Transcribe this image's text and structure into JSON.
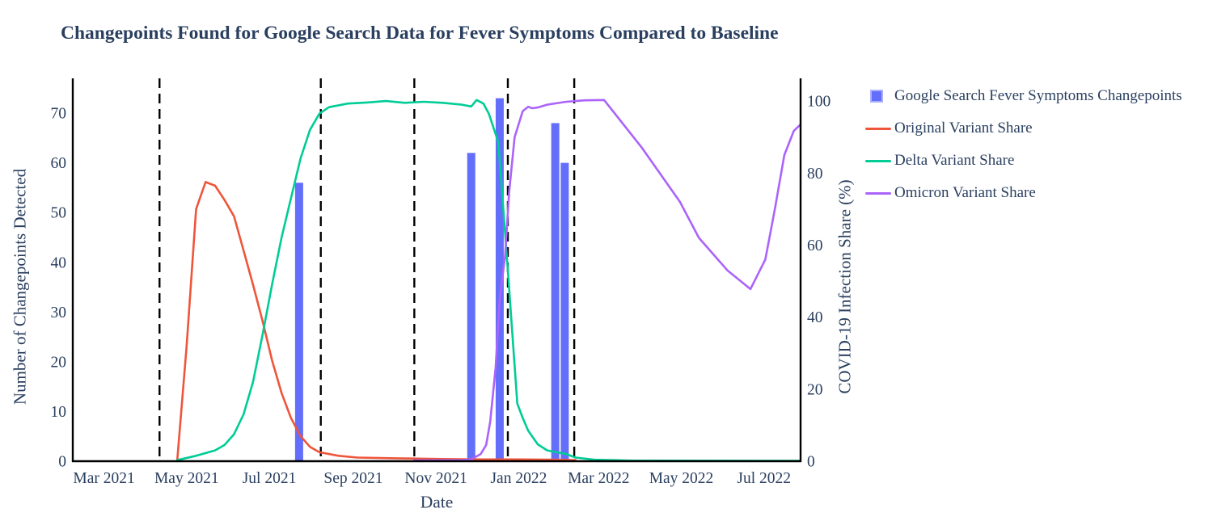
{
  "chart_data": {
    "type": "bar+line",
    "title": "Changepoints Found for Google Search Data for Fever Symptoms Compared to Baseline",
    "xlabel": "Date",
    "ylabel_left": "Number of Changepoints Detected",
    "ylabel_right": "COVID-19 Infection Share (%)",
    "x_range": [
      "2021-02-06",
      "2022-07-28"
    ],
    "ylim_left": [
      0,
      77
    ],
    "ylim_right": [
      0,
      106.3
    ],
    "yticks_left": [
      0,
      10,
      20,
      30,
      40,
      50,
      60,
      70
    ],
    "yticks_right": [
      0,
      20,
      40,
      60,
      80,
      100
    ],
    "xticks": [
      {
        "date": "2021-03-01",
        "label": "Mar 2021"
      },
      {
        "date": "2021-05-01",
        "label": "May 2021"
      },
      {
        "date": "2021-07-01",
        "label": "Jul 2021"
      },
      {
        "date": "2021-09-01",
        "label": "Sep 2021"
      },
      {
        "date": "2021-11-01",
        "label": "Nov 2021"
      },
      {
        "date": "2022-01-01",
        "label": "Jan 2022"
      },
      {
        "date": "2022-03-01",
        "label": "Mar 2022"
      },
      {
        "date": "2022-05-01",
        "label": "May 2022"
      },
      {
        "date": "2022-07-01",
        "label": "Jul 2022"
      }
    ],
    "dashed_vlines": [
      "2021-04-11",
      "2021-08-08",
      "2021-10-16",
      "2021-12-24",
      "2022-02-11"
    ],
    "bars": {
      "name": "Google Search Fever Symptoms Changepoints",
      "color": "#636EFA",
      "axis": "left",
      "points": [
        [
          "2021-07-23",
          56
        ],
        [
          "2021-11-27",
          62
        ],
        [
          "2021-12-18",
          73
        ],
        [
          "2022-01-28",
          68
        ],
        [
          "2022-02-04",
          60
        ]
      ]
    },
    "series": [
      {
        "name": "Original Variant Share",
        "color": "#EF553B",
        "axis": "right",
        "points": [
          [
            "2021-04-24",
            0
          ],
          [
            "2021-05-01",
            32
          ],
          [
            "2021-05-08",
            70
          ],
          [
            "2021-05-15",
            77.5
          ],
          [
            "2021-05-22",
            76.5
          ],
          [
            "2021-05-29",
            72.5
          ],
          [
            "2021-06-05",
            68
          ],
          [
            "2021-06-12",
            58.5
          ],
          [
            "2021-06-19",
            49
          ],
          [
            "2021-06-26",
            39
          ],
          [
            "2021-07-03",
            28
          ],
          [
            "2021-07-10",
            19
          ],
          [
            "2021-07-17",
            12
          ],
          [
            "2021-07-24",
            7
          ],
          [
            "2021-07-31",
            4
          ],
          [
            "2021-08-07",
            2.5
          ],
          [
            "2021-08-21",
            1.5
          ],
          [
            "2021-09-04",
            1
          ],
          [
            "2021-10-02",
            0.8
          ],
          [
            "2021-11-06",
            0.6
          ],
          [
            "2021-12-04",
            0.5
          ],
          [
            "2022-01-01",
            0.5
          ],
          [
            "2022-01-29",
            0.4
          ],
          [
            "2022-02-12",
            0.3
          ]
        ]
      },
      {
        "name": "Delta Variant Share",
        "color": "#00CC96",
        "axis": "right",
        "points": [
          [
            "2021-04-24",
            0.3
          ],
          [
            "2021-05-08",
            1.5
          ],
          [
            "2021-05-22",
            3
          ],
          [
            "2021-05-29",
            4.5
          ],
          [
            "2021-06-05",
            7.5
          ],
          [
            "2021-06-12",
            13
          ],
          [
            "2021-06-19",
            22
          ],
          [
            "2021-06-26",
            35
          ],
          [
            "2021-07-03",
            49
          ],
          [
            "2021-07-10",
            62
          ],
          [
            "2021-07-17",
            73
          ],
          [
            "2021-07-24",
            84
          ],
          [
            "2021-07-31",
            92
          ],
          [
            "2021-08-07",
            96.5
          ],
          [
            "2021-08-14",
            98.3
          ],
          [
            "2021-08-28",
            99.3
          ],
          [
            "2021-09-11",
            99.6
          ],
          [
            "2021-09-25",
            100
          ],
          [
            "2021-10-09",
            99.5
          ],
          [
            "2021-10-23",
            99.8
          ],
          [
            "2021-11-06",
            99.5
          ],
          [
            "2021-11-20",
            99
          ],
          [
            "2021-11-27",
            98.5
          ],
          [
            "2021-12-01",
            100.3
          ],
          [
            "2021-12-06",
            99.3
          ],
          [
            "2021-12-10",
            96.5
          ],
          [
            "2021-12-17",
            88.5
          ],
          [
            "2021-12-24",
            53
          ],
          [
            "2021-12-31",
            16
          ],
          [
            "2022-01-04",
            12
          ],
          [
            "2022-01-08",
            8.5
          ],
          [
            "2022-01-15",
            4.7
          ],
          [
            "2022-01-22",
            3
          ],
          [
            "2022-01-29",
            2.5
          ],
          [
            "2022-02-05",
            2
          ],
          [
            "2022-02-12",
            1
          ],
          [
            "2022-02-26",
            0.4
          ],
          [
            "2022-03-26",
            0.15
          ],
          [
            "2022-07-28",
            0.1
          ]
        ]
      },
      {
        "name": "Omicron Variant Share",
        "color": "#AB63FA",
        "axis": "right",
        "points": [
          [
            "2021-10-16",
            0.2
          ],
          [
            "2021-11-20",
            0.3
          ],
          [
            "2021-11-27",
            0.5
          ],
          [
            "2021-12-04",
            2
          ],
          [
            "2021-12-08",
            4.5
          ],
          [
            "2021-12-11",
            11
          ],
          [
            "2021-12-15",
            26
          ],
          [
            "2021-12-18",
            45
          ],
          [
            "2021-12-22",
            57
          ],
          [
            "2021-12-25",
            75
          ],
          [
            "2021-12-29",
            90
          ],
          [
            "2022-01-04",
            97.2
          ],
          [
            "2022-01-08",
            98.4
          ],
          [
            "2022-01-11",
            98
          ],
          [
            "2022-01-15",
            98.2
          ],
          [
            "2022-01-22",
            99
          ],
          [
            "2022-02-05",
            99.8
          ],
          [
            "2022-02-19",
            100.2
          ],
          [
            "2022-03-05",
            100.3
          ],
          [
            "2022-04-02",
            87
          ],
          [
            "2022-04-30",
            72
          ],
          [
            "2022-05-14",
            62
          ],
          [
            "2022-06-04",
            53
          ],
          [
            "2022-06-21",
            47.8
          ],
          [
            "2022-07-02",
            56
          ],
          [
            "2022-07-09",
            70
          ],
          [
            "2022-07-16",
            85
          ],
          [
            "2022-07-23",
            91.7
          ],
          [
            "2022-07-28",
            93.5
          ]
        ]
      }
    ],
    "legend": [
      {
        "label": "Google Search Fever Symptoms Changepoints",
        "marker": "square",
        "color": "#636EFA",
        "border": "#aab0fc"
      },
      {
        "label": "Original Variant Share",
        "marker": "line",
        "color": "#EF553B"
      },
      {
        "label": "Delta Variant Share",
        "marker": "line",
        "color": "#00CC96"
      },
      {
        "label": "Omicron Variant Share",
        "marker": "line",
        "color": "#AB63FA"
      }
    ],
    "colors": {
      "text": "#2a3f5f",
      "axis_line": "#000000",
      "dashed": "#000000",
      "background": "#ffffff"
    },
    "legend_position": "right",
    "grid": false
  }
}
